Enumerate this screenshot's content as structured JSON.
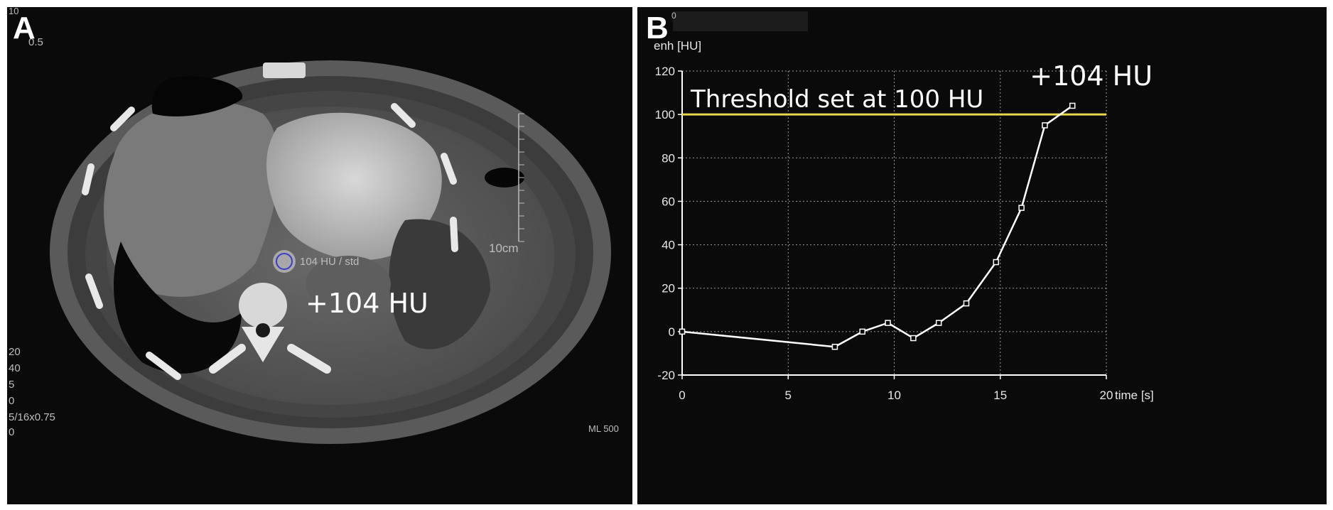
{
  "panel_a": {
    "letter": "A",
    "roi_label": "104 HU / std",
    "enhancement_label": "+104 HU",
    "scale_label": "10cm",
    "corner_top": [
      "10",
      "0.5"
    ],
    "corner_bottom": [
      "20",
      "40",
      "5",
      "0",
      "5/16x0.75",
      "0"
    ],
    "bottom_right": "ML 500"
  },
  "panel_b": {
    "letter": "B",
    "header_digit": "0"
  },
  "colors": {
    "threshold_line": "#e6d84a",
    "curve": "#ffffff",
    "grid": "#9a9a9a",
    "panel_bg": "#0a0a0a"
  },
  "chart_data": {
    "type": "line",
    "ylabel": "enh [HU]",
    "xlabel": "time [s]",
    "xlim": [
      0,
      20
    ],
    "ylim": [
      -20,
      120
    ],
    "xticks": [
      0,
      5,
      10,
      15,
      20
    ],
    "yticks": [
      -20,
      0,
      20,
      40,
      60,
      80,
      100,
      120
    ],
    "grid": true,
    "series": [
      {
        "x": [
          0,
          7.2,
          8.5,
          9.7,
          10.9,
          12.1,
          13.4,
          14.8,
          16.0,
          17.1,
          18.4
        ],
        "y": [
          0,
          -7,
          0,
          4,
          -3,
          4,
          13,
          32,
          57,
          95,
          104
        ]
      }
    ],
    "threshold": {
      "value": 100,
      "label": "Threshold set at 100 HU"
    },
    "peak_annotation": "+104 HU"
  }
}
